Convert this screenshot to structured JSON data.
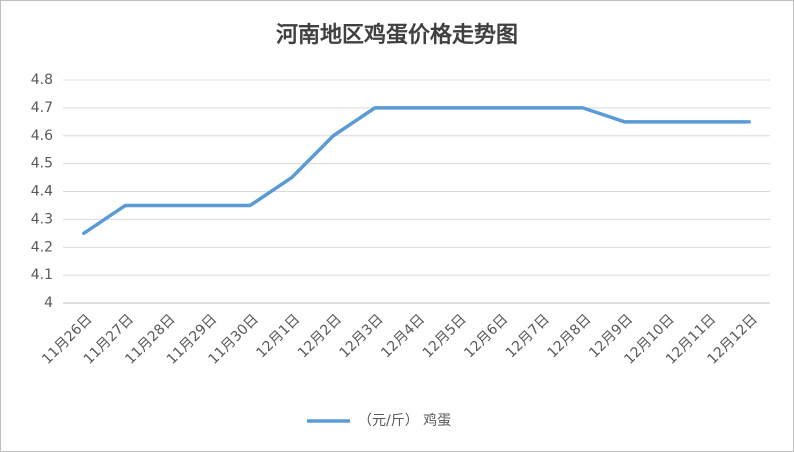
{
  "chart_data": {
    "type": "line",
    "title": "河南地区鸡蛋价格走势图",
    "categories": [
      "11月26日",
      "11月27日",
      "11月28日",
      "11月29日",
      "11月30日",
      "12月1日",
      "12月2日",
      "12月3日",
      "12月4日",
      "12月5日",
      "12月6日",
      "12月7日",
      "12月8日",
      "12月9日",
      "12月10日",
      "12月11日",
      "12月12日"
    ],
    "series": [
      {
        "name": "（元/斤） 鸡蛋",
        "color": "#5b9bd5",
        "values": [
          4.25,
          4.35,
          4.35,
          4.35,
          4.35,
          4.45,
          4.6,
          4.7,
          4.7,
          4.7,
          4.7,
          4.7,
          4.7,
          4.65,
          4.65,
          4.65,
          4.65
        ]
      }
    ],
    "ylim": [
      4,
      4.8
    ],
    "yticks": [
      4,
      4.1,
      4.2,
      4.3,
      4.4,
      4.5,
      4.6,
      4.7,
      4.8
    ],
    "grid": true,
    "legend": "bottom"
  }
}
